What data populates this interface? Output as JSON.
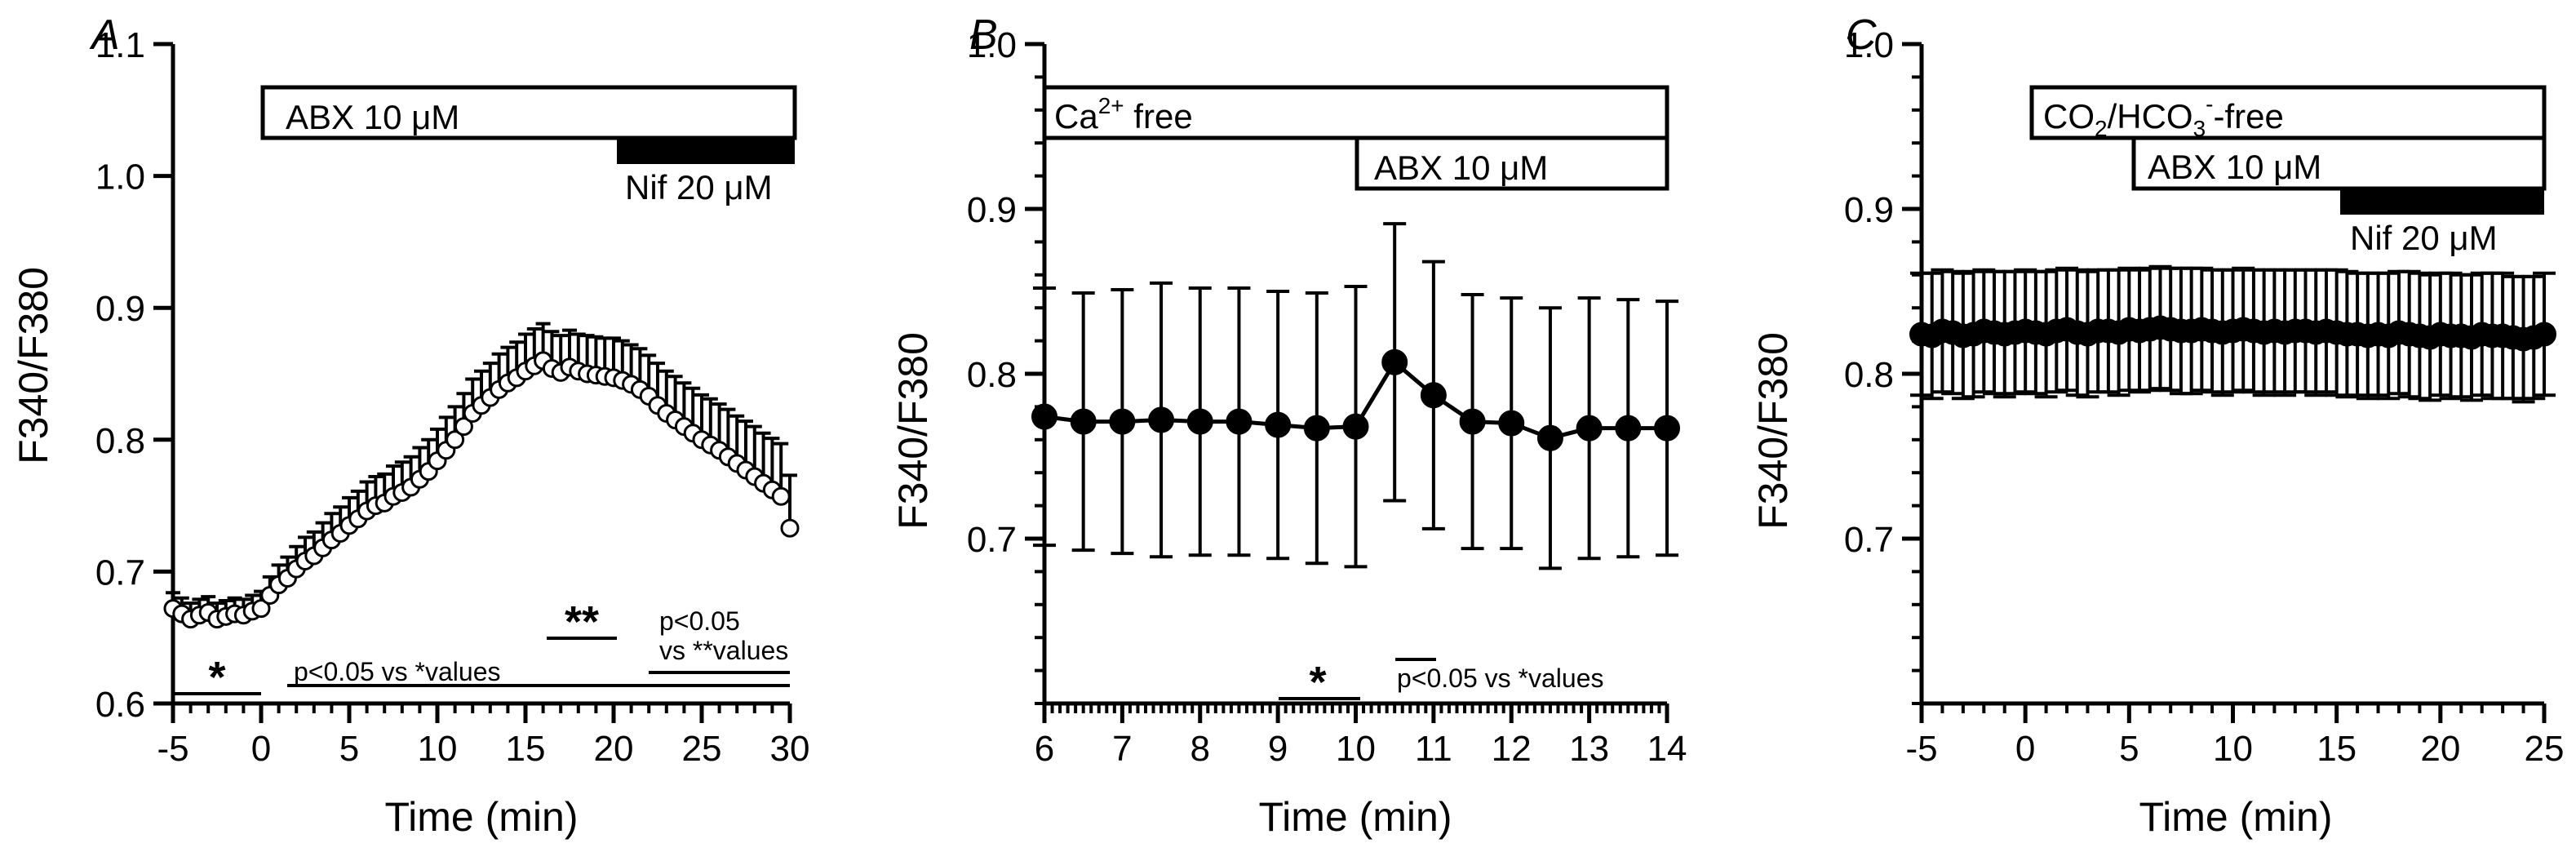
{
  "colors": {
    "ink": "#000000",
    "paper": "#ffffff"
  },
  "chart_data": [
    {
      "type": "scatter",
      "panel": "A",
      "xlabel": "Time (min)",
      "ylabel": "F340/F380",
      "xlim": [
        -5,
        30
      ],
      "ylim": [
        0.6,
        1.1
      ],
      "x_ticks": [
        "-5",
        "0",
        "5",
        "10",
        "15",
        "20",
        "25",
        "30"
      ],
      "y_ticks": [
        "0.6",
        "0.7",
        "0.8",
        "0.9",
        "1.0",
        "1.1"
      ],
      "marker": "open-circle",
      "connect": false,
      "series": [
        {
          "x": [
            -5.0,
            -4.5,
            -4.0,
            -3.5,
            -3.0,
            -2.5,
            -2.0,
            -1.5,
            -1.0,
            -0.5,
            0.0,
            0.5,
            1.0,
            1.5,
            2.0,
            2.5,
            3.0,
            3.5,
            4.0,
            4.5,
            5.0,
            5.5,
            6.0,
            6.5,
            7.0,
            7.5,
            8.0,
            8.5,
            9.0,
            9.5,
            10.0,
            10.5,
            11.0,
            11.5,
            12.0,
            12.5,
            13.0,
            13.5,
            14.0,
            14.5,
            15.0,
            15.5,
            16.0,
            16.5,
            17.0,
            17.5,
            18.0,
            18.5,
            19.0,
            19.5,
            20.0,
            20.5,
            21.0,
            21.5,
            22.0,
            22.5,
            23.0,
            23.5,
            24.0,
            24.5,
            25.0,
            25.5,
            26.0,
            26.5,
            27.0,
            27.5,
            28.0,
            28.5,
            29.0,
            29.5,
            30.0
          ],
          "values": [
            0.672,
            0.668,
            0.664,
            0.667,
            0.669,
            0.664,
            0.666,
            0.668,
            0.667,
            0.67,
            0.672,
            0.682,
            0.69,
            0.695,
            0.702,
            0.708,
            0.712,
            0.718,
            0.724,
            0.729,
            0.735,
            0.74,
            0.746,
            0.75,
            0.752,
            0.757,
            0.76,
            0.764,
            0.77,
            0.776,
            0.784,
            0.792,
            0.8,
            0.81,
            0.82,
            0.826,
            0.832,
            0.838,
            0.843,
            0.847,
            0.852,
            0.856,
            0.86,
            0.854,
            0.851,
            0.855,
            0.852,
            0.85,
            0.849,
            0.848,
            0.847,
            0.845,
            0.842,
            0.838,
            0.833,
            0.826,
            0.82,
            0.815,
            0.81,
            0.805,
            0.8,
            0.796,
            0.792,
            0.787,
            0.782,
            0.777,
            0.772,
            0.767,
            0.762,
            0.757,
            0.733
          ],
          "error": [
            0.012,
            0.012,
            0.012,
            0.012,
            0.012,
            0.012,
            0.012,
            0.012,
            0.012,
            0.012,
            0.013,
            0.014,
            0.015,
            0.016,
            0.017,
            0.018,
            0.018,
            0.019,
            0.02,
            0.02,
            0.021,
            0.021,
            0.022,
            0.022,
            0.022,
            0.023,
            0.023,
            0.023,
            0.024,
            0.024,
            0.024,
            0.025,
            0.025,
            0.025,
            0.026,
            0.026,
            0.026,
            0.027,
            0.027,
            0.027,
            0.028,
            0.028,
            0.028,
            0.028,
            0.028,
            0.028,
            0.028,
            0.029,
            0.029,
            0.029,
            0.03,
            0.03,
            0.03,
            0.031,
            0.031,
            0.032,
            0.032,
            0.033,
            0.033,
            0.034,
            0.034,
            0.035,
            0.035,
            0.036,
            0.036,
            0.037,
            0.038,
            0.038,
            0.039,
            0.04,
            0.04
          ]
        }
      ],
      "bars": [
        {
          "label": "ABX 10 μM",
          "from": 0,
          "to": 30,
          "style": "open"
        },
        {
          "label": "Nif 20 μM",
          "from": 20,
          "to": 30,
          "style": "filled"
        }
      ],
      "annotations": {
        "star1": "*",
        "star2": "**",
        "stat1": "p<0.05 vs *values",
        "stat2_line1": "p<0.05",
        "stat2_line2": "vs  **values"
      }
    },
    {
      "type": "line",
      "panel": "B",
      "xlabel": "Time (min)",
      "ylabel": "F340/F380",
      "xlim": [
        6,
        14
      ],
      "ylim": [
        0.6,
        1.0
      ],
      "x_ticks": [
        "6",
        "7",
        "8",
        "9",
        "10",
        "11",
        "12",
        "13",
        "14"
      ],
      "y_ticks": [
        "0.7",
        "0.8",
        "0.9",
        "1.0"
      ],
      "marker": "filled-circle",
      "connect": true,
      "series": [
        {
          "x": [
            6.0,
            6.5,
            7.0,
            7.5,
            8.0,
            8.5,
            9.0,
            9.5,
            10.0,
            10.5,
            11.0,
            11.5,
            12.0,
            12.5,
            13.0,
            13.5,
            14.0
          ],
          "values": [
            0.774,
            0.771,
            0.771,
            0.772,
            0.771,
            0.771,
            0.769,
            0.767,
            0.768,
            0.807,
            0.787,
            0.771,
            0.77,
            0.761,
            0.767,
            0.767,
            0.767
          ],
          "error": [
            0.078,
            0.078,
            0.08,
            0.083,
            0.081,
            0.081,
            0.081,
            0.082,
            0.085,
            0.084,
            0.081,
            0.077,
            0.076,
            0.079,
            0.079,
            0.078,
            0.077
          ]
        }
      ],
      "bars": [
        {
          "label": "Ca",
          "superscript": "2+",
          "suffix": " free",
          "from": 6,
          "to": 14,
          "style": "open"
        },
        {
          "label": "ABX 10 μM",
          "from": 10,
          "to": 14,
          "style": "open"
        }
      ],
      "annotations": {
        "star1": "*",
        "stat1": "p<0.05 vs *values"
      }
    },
    {
      "type": "line",
      "panel": "C",
      "xlabel": "Time (min)",
      "ylabel": "F340/F380",
      "xlim": [
        -5,
        25
      ],
      "ylim": [
        0.6,
        1.0
      ],
      "x_ticks": [
        "-5",
        "0",
        "5",
        "10",
        "15",
        "20",
        "25"
      ],
      "y_ticks": [
        "0.7",
        "0.8",
        "0.9",
        "1.0"
      ],
      "marker": "filled-circle",
      "connect": true,
      "series": [
        {
          "x": [
            -5.0,
            -4.5,
            -4.0,
            -3.5,
            -3.0,
            -2.5,
            -2.0,
            -1.5,
            -1.0,
            -0.5,
            0.0,
            0.5,
            1.0,
            1.5,
            2.0,
            2.5,
            3.0,
            3.5,
            4.0,
            4.5,
            5.0,
            5.5,
            6.0,
            6.5,
            7.0,
            7.5,
            8.0,
            8.5,
            9.0,
            9.5,
            10.0,
            10.5,
            11.0,
            11.5,
            12.0,
            12.5,
            13.0,
            13.5,
            14.0,
            14.5,
            15.0,
            15.5,
            16.0,
            16.5,
            17.0,
            17.5,
            18.0,
            18.5,
            19.0,
            19.5,
            20.0,
            20.5,
            21.0,
            21.5,
            22.0,
            22.5,
            23.0,
            23.5,
            24.0,
            24.5,
            25.0
          ],
          "values": [
            0.824,
            0.823,
            0.826,
            0.825,
            0.823,
            0.824,
            0.826,
            0.825,
            0.824,
            0.825,
            0.826,
            0.825,
            0.824,
            0.826,
            0.827,
            0.825,
            0.824,
            0.826,
            0.826,
            0.825,
            0.827,
            0.826,
            0.827,
            0.828,
            0.827,
            0.826,
            0.826,
            0.827,
            0.826,
            0.825,
            0.826,
            0.827,
            0.826,
            0.825,
            0.826,
            0.825,
            0.826,
            0.826,
            0.825,
            0.826,
            0.825,
            0.824,
            0.824,
            0.823,
            0.824,
            0.823,
            0.825,
            0.824,
            0.823,
            0.822,
            0.824,
            0.823,
            0.823,
            0.822,
            0.824,
            0.823,
            0.823,
            0.822,
            0.821,
            0.822,
            0.824
          ],
          "error": [
            0.037,
            0.038,
            0.037,
            0.037,
            0.038,
            0.038,
            0.037,
            0.037,
            0.038,
            0.037,
            0.037,
            0.037,
            0.038,
            0.037,
            0.037,
            0.038,
            0.038,
            0.037,
            0.037,
            0.038,
            0.037,
            0.037,
            0.037,
            0.037,
            0.037,
            0.038,
            0.038,
            0.037,
            0.037,
            0.038,
            0.037,
            0.037,
            0.037,
            0.038,
            0.037,
            0.038,
            0.037,
            0.037,
            0.038,
            0.037,
            0.038,
            0.038,
            0.037,
            0.038,
            0.037,
            0.038,
            0.037,
            0.038,
            0.038,
            0.038,
            0.037,
            0.038,
            0.037,
            0.038,
            0.037,
            0.038,
            0.038,
            0.037,
            0.038,
            0.037,
            0.037
          ]
        }
      ],
      "bars": [
        {
          "label": "CO",
          "sub": "2",
          "mid": "/HCO",
          "sub2": "3",
          "sup": "-",
          "suffix": "-free",
          "from": 0,
          "to": 25,
          "style": "open"
        },
        {
          "label": "ABX 10 μM",
          "from": 5,
          "to": 25,
          "style": "open"
        },
        {
          "label": "Nif 20 μM",
          "from": 15,
          "to": 25,
          "style": "filled"
        }
      ]
    }
  ]
}
